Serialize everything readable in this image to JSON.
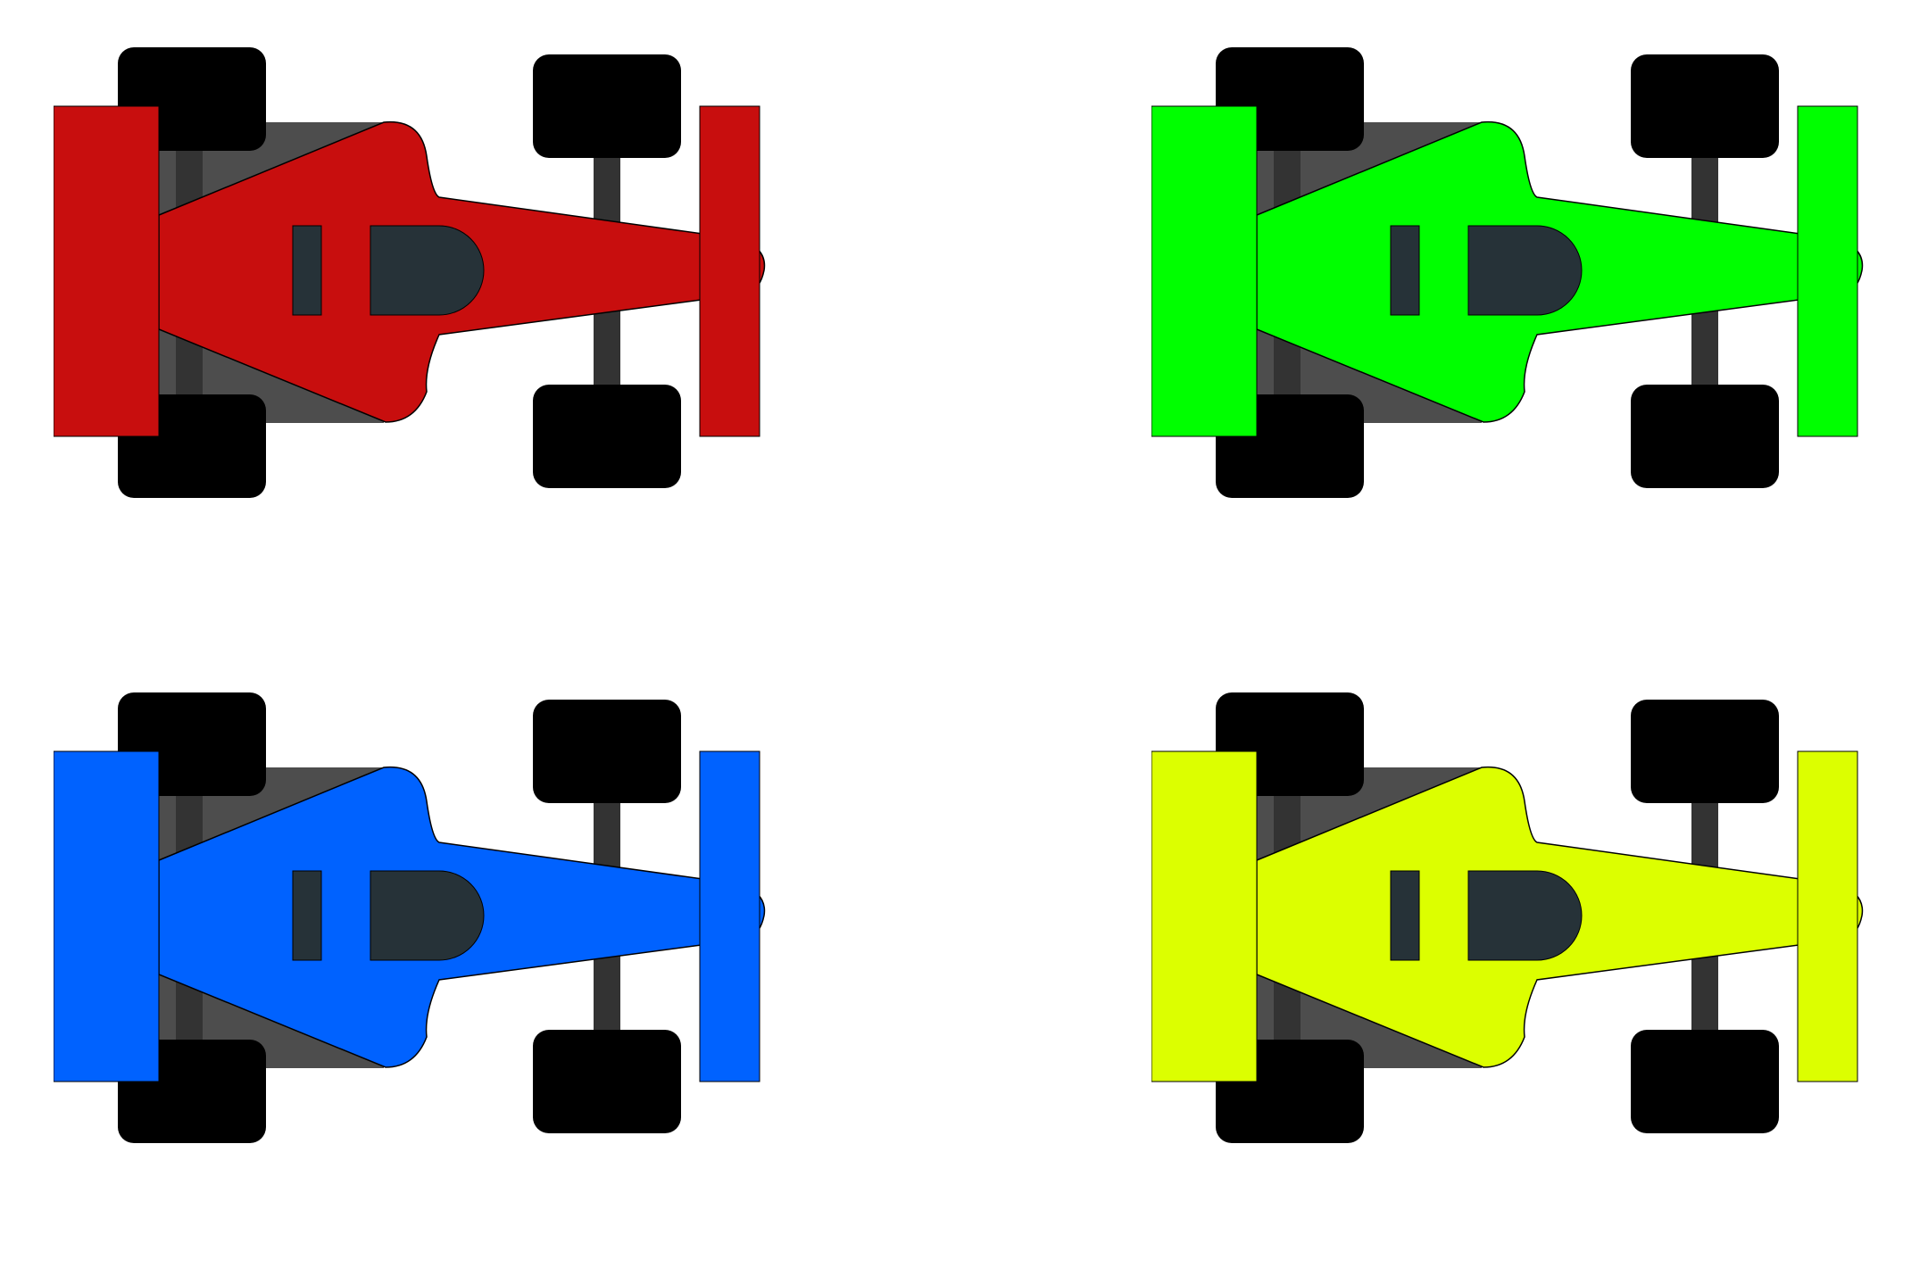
{
  "palette": {
    "tire": "#000000",
    "axle": "#333333",
    "floor": "#4d4d4d",
    "cockpit": "#263238",
    "outline": "#000000",
    "background": "#ffffff"
  },
  "cars": [
    {
      "id": "red",
      "body_color": "#c80e0e"
    },
    {
      "id": "green",
      "body_color": "#00ff00"
    },
    {
      "id": "blue",
      "body_color": "#0062ff"
    },
    {
      "id": "yellow",
      "body_color": "#dcff00"
    }
  ]
}
